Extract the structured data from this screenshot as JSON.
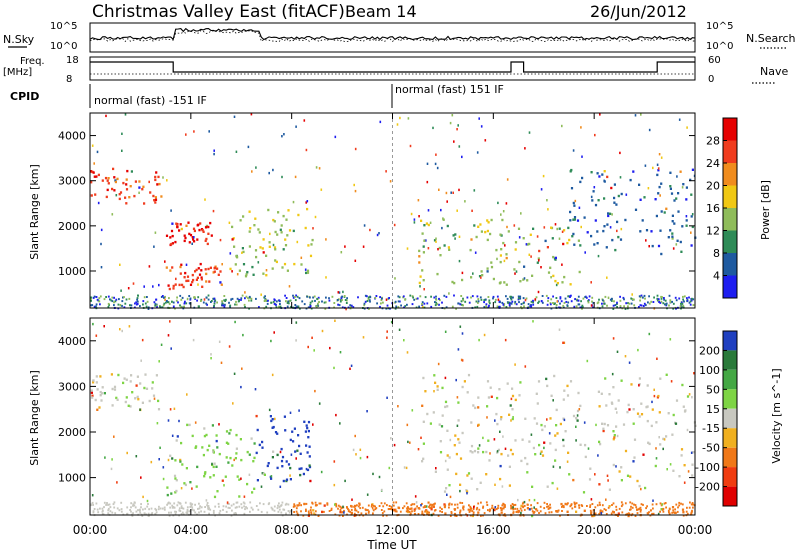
{
  "header": {
    "title": "Christmas Valley East (fitACF)",
    "beam": "Beam 14",
    "date": "26/Jun/2012"
  },
  "strip_labels": {
    "nsky": "N.Sky",
    "nsky_ticks": [
      "10^5",
      "10^0"
    ],
    "nsearch": "N.Search",
    "nsearch_ticks": [
      "10^5",
      "10^0"
    ],
    "freq": "Freq.",
    "freq_unit": "[MHz]",
    "freq_ticks": [
      "18",
      "8"
    ],
    "nave": "Nave",
    "nave_ticks": [
      "60",
      "0"
    ],
    "cpid": "CPID",
    "cpid_segments": [
      {
        "label": "normal (fast) -151 IF",
        "start_hour": 0
      },
      {
        "label": "normal (fast) 151 IF",
        "start_hour": 12
      }
    ]
  },
  "chart_data": [
    {
      "type": "heatmap",
      "name": "power",
      "ylabel": "Slant Range [km]",
      "ylim": [
        180,
        4500
      ],
      "yticks": [
        1000,
        2000,
        3000,
        4000
      ],
      "xlim": [
        0,
        24
      ],
      "colorbar": {
        "label": "Power [dB]",
        "ticks": [
          "4",
          "8",
          "12",
          "16",
          "20",
          "24",
          "28"
        ],
        "colors": [
          "#1e1ef0",
          "#1e5aa0",
          "#2e8b57",
          "#8fbc5a",
          "#f0c814",
          "#f08c1e",
          "#f03c1e",
          "#e60000"
        ]
      },
      "blobs": [
        {
          "t0": 0.0,
          "t1": 2.8,
          "r0": 2500,
          "r1": 3300,
          "dominant": "orange"
        },
        {
          "t0": 3.0,
          "t1": 4.8,
          "r0": 1600,
          "r1": 2100,
          "dominant": "red"
        },
        {
          "t0": 3.0,
          "t1": 5.2,
          "r0": 600,
          "r1": 1200,
          "dominant": "orange"
        },
        {
          "t0": 5.5,
          "t1": 8.8,
          "r0": 900,
          "r1": 2400,
          "dominant": "green"
        },
        {
          "t0": 13.0,
          "t1": 19.5,
          "r0": 700,
          "r1": 2200,
          "dominant": "green"
        },
        {
          "t0": 19.0,
          "t1": 24.0,
          "r0": 1400,
          "r1": 3300,
          "dominant": "blue"
        }
      ]
    },
    {
      "type": "heatmap",
      "name": "velocity",
      "ylabel": "Slant Range [km]",
      "xlabel": "Time UT",
      "ylim": [
        180,
        4500
      ],
      "yticks": [
        1000,
        2000,
        3000,
        4000
      ],
      "xlim": [
        0,
        24
      ],
      "xticks": [
        "00:00",
        "04:00",
        "08:00",
        "12:00",
        "16:00",
        "20:00",
        "00:00"
      ],
      "colorbar": {
        "label": "Velocity [m s^-1]",
        "ticks": [
          "200",
          "100",
          "50",
          "15",
          "-15",
          "-50",
          "-100",
          "-200"
        ],
        "colors": [
          "#2040c0",
          "#2a7a3a",
          "#44a844",
          "#7ed444",
          "#c8c8c0",
          "#f0b020",
          "#f07818",
          "#f03c10",
          "#e00000"
        ]
      },
      "blobs": [
        {
          "t0": 0.0,
          "t1": 2.8,
          "r0": 2500,
          "r1": 3300,
          "dominant": "gray"
        },
        {
          "t0": 3.0,
          "t1": 6.5,
          "r0": 600,
          "r1": 2200,
          "dominant": "green"
        },
        {
          "t0": 6.5,
          "t1": 8.8,
          "r0": 900,
          "r1": 2400,
          "dominant": "blue"
        },
        {
          "t0": 13.0,
          "t1": 24.0,
          "r0": 700,
          "r1": 3300,
          "dominant": "gray"
        },
        {
          "t0": 8.0,
          "t1": 24.0,
          "r0": 180,
          "r1": 450,
          "dominant": "orange"
        }
      ]
    }
  ]
}
